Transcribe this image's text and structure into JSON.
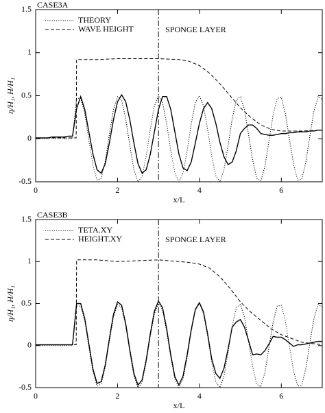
{
  "chart_data": [
    {
      "type": "line",
      "title": "CASE3A",
      "annotation": "SPONGE LAYER",
      "vline": 3,
      "xlabel": "x/L",
      "ylabel": "η/H₁, H/H₁",
      "xlim": [
        0,
        7
      ],
      "xticks": [
        0,
        2,
        4,
        6
      ],
      "ylim": [
        -0.5,
        1.5
      ],
      "yticks": [
        -0.5,
        0,
        0.5,
        1,
        1.5
      ],
      "x": [
        0,
        0.1,
        0.2,
        0.3,
        0.4,
        0.5,
        0.6,
        0.7,
        0.8,
        0.9,
        1,
        1.1,
        1.2,
        1.3,
        1.4,
        1.5,
        1.6,
        1.7,
        1.8,
        1.9,
        2,
        2.1,
        2.2,
        2.3,
        2.4,
        2.5,
        2.6,
        2.7,
        2.8,
        2.9,
        3,
        3.1,
        3.2,
        3.3,
        3.4,
        3.5,
        3.6,
        3.7,
        3.8,
        3.9,
        4,
        4.1,
        4.2,
        4.3,
        4.4,
        4.5,
        4.6,
        4.7,
        4.8,
        4.9,
        5,
        5.1,
        5.2,
        5.3,
        5.4,
        5.5,
        5.6,
        5.7,
        5.8,
        5.9,
        6,
        6.1,
        6.2,
        6.3,
        6.4,
        6.5,
        6.6,
        6.7,
        6.8,
        6.9,
        7
      ],
      "series": [
        {
          "name": "THEORY",
          "color": "#000000",
          "style": "dotted",
          "values": [
            0,
            0,
            0,
            0,
            0,
            0,
            0,
            0,
            0,
            0,
            0.47,
            0.47,
            0.29,
            -0.02,
            -0.31,
            -0.48,
            -0.46,
            -0.26,
            0.05,
            0.34,
            0.49,
            0.45,
            0.23,
            -0.08,
            -0.36,
            -0.5,
            -0.44,
            -0.2,
            0.11,
            0.38,
            0.5,
            0.42,
            0.17,
            -0.14,
            -0.4,
            -0.5,
            -0.4,
            -0.14,
            0.17,
            0.42,
            0.5,
            0.38,
            0.11,
            -0.2,
            -0.43,
            -0.5,
            -0.36,
            -0.08,
            0.23,
            0.45,
            0.49,
            0.34,
            0.05,
            -0.25,
            -0.46,
            -0.49,
            -0.32,
            -0.02,
            0.28,
            0.47,
            0.48,
            0.29,
            -0.01,
            -0.3,
            -0.48,
            -0.47,
            -0.27,
            0.04,
            0.33,
            0.49,
            0.46
          ]
        },
        {
          "name": "WAVE HEIGHT",
          "color": "#000000",
          "style": "dashed",
          "x": [
            0,
            0.99,
            1,
            1.5,
            2,
            2.5,
            3,
            3.5,
            3.75,
            4,
            4.25,
            4.5,
            4.75,
            5,
            5.25,
            5.5,
            5.75,
            6,
            6.5,
            7
          ],
          "values": [
            0.01,
            0.01,
            0.92,
            0.92,
            0.93,
            0.93,
            0.93,
            0.92,
            0.9,
            0.85,
            0.76,
            0.64,
            0.5,
            0.36,
            0.25,
            0.16,
            0.11,
            0.09,
            0.09,
            0.1
          ]
        },
        {
          "color": "#000000",
          "style": "solid",
          "values": [
            0.01,
            0.01,
            0.01,
            0.01,
            0.02,
            0.02,
            0.02,
            0.02,
            0.03,
            0.03,
            0.35,
            0.49,
            0.34,
            0.08,
            -0.18,
            -0.36,
            -0.4,
            -0.29,
            -0.05,
            0.22,
            0.43,
            0.51,
            0.43,
            0.22,
            -0.05,
            -0.29,
            -0.4,
            -0.36,
            -0.18,
            0.08,
            0.34,
            0.49,
            0.49,
            0.34,
            0.08,
            -0.18,
            -0.34,
            -0.37,
            -0.27,
            -0.05,
            0.18,
            0.35,
            0.42,
            0.35,
            0.18,
            -0.04,
            -0.21,
            -0.3,
            -0.27,
            -0.14,
            0.06,
            0.12,
            0.16,
            0.16,
            0.12,
            0.06,
            0.05,
            0.04,
            0.04,
            0.05,
            0.06,
            0.06,
            0.07,
            0.07,
            0.08,
            0.08,
            0.08,
            0.09,
            0.09,
            0.1,
            0.1
          ]
        }
      ]
    },
    {
      "type": "line",
      "title": "CASE3B",
      "annotation": "SPONGE LAYER",
      "vline": 3,
      "xlabel": "x/L",
      "ylabel": "η/H₁, H/H₁",
      "xlim": [
        0,
        7
      ],
      "xticks": [
        0,
        2,
        4,
        6
      ],
      "ylim": [
        -0.5,
        1.5
      ],
      "yticks": [
        -0.5,
        0,
        0.5,
        1,
        1.5
      ],
      "x": [
        0,
        0.1,
        0.2,
        0.3,
        0.4,
        0.5,
        0.6,
        0.7,
        0.8,
        0.9,
        1,
        1.1,
        1.2,
        1.3,
        1.4,
        1.5,
        1.6,
        1.7,
        1.8,
        1.9,
        2,
        2.1,
        2.2,
        2.3,
        2.4,
        2.5,
        2.6,
        2.7,
        2.8,
        2.9,
        3,
        3.1,
        3.2,
        3.3,
        3.4,
        3.5,
        3.6,
        3.7,
        3.8,
        3.9,
        4,
        4.1,
        4.2,
        4.3,
        4.4,
        4.5,
        4.6,
        4.7,
        4.8,
        4.9,
        5,
        5.1,
        5.2,
        5.3,
        5.4,
        5.5,
        5.6,
        5.7,
        5.8,
        5.9,
        6,
        6.1,
        6.2,
        6.3,
        6.4,
        6.5,
        6.6,
        6.7,
        6.8,
        6.9,
        7
      ],
      "series": [
        {
          "name": "TETA.XY",
          "color": "#000000",
          "style": "dotted",
          "values": [
            0,
            0,
            0,
            0,
            0,
            0,
            0,
            0,
            0,
            0,
            0.47,
            0.47,
            0.29,
            -0.02,
            -0.31,
            -0.48,
            -0.46,
            -0.26,
            0.05,
            0.34,
            0.49,
            0.45,
            0.23,
            -0.08,
            -0.36,
            -0.5,
            -0.44,
            -0.2,
            0.11,
            0.38,
            0.5,
            0.42,
            0.17,
            -0.14,
            -0.4,
            -0.5,
            -0.4,
            -0.14,
            0.17,
            0.42,
            0.5,
            0.38,
            0.11,
            -0.2,
            -0.43,
            -0.5,
            -0.36,
            -0.08,
            0.23,
            0.45,
            0.49,
            0.34,
            0.05,
            -0.25,
            -0.46,
            -0.49,
            -0.32,
            -0.02,
            0.28,
            0.47,
            0.48,
            0.29,
            -0.01,
            -0.3,
            -0.48,
            -0.47,
            -0.27,
            0.04,
            0.33,
            0.49,
            0.46
          ]
        },
        {
          "name": "HEIGHT.XY",
          "color": "#000000",
          "style": "dashed",
          "x": [
            0,
            0.99,
            1,
            1.5,
            2,
            2.5,
            3,
            3.5,
            3.75,
            4,
            4.25,
            4.5,
            4.75,
            5,
            5.25,
            5.5,
            5.75,
            6,
            6.5,
            7
          ],
          "values": [
            0.01,
            0.01,
            1.02,
            1.02,
            1.0,
            1.01,
            1.02,
            1.0,
            0.99,
            0.97,
            0.92,
            0.82,
            0.68,
            0.52,
            0.4,
            0.3,
            0.2,
            0.13,
            0.04,
            0.01
          ]
        },
        {
          "color": "#000000",
          "style": "solid",
          "values": [
            0.01,
            0.01,
            0.01,
            0.01,
            0.01,
            0.01,
            0.01,
            0.01,
            0.01,
            0.01,
            0.5,
            0.5,
            0.32,
            0.02,
            -0.28,
            -0.45,
            -0.43,
            -0.23,
            0.08,
            0.37,
            0.52,
            0.48,
            0.26,
            -0.05,
            -0.33,
            -0.47,
            -0.41,
            -0.17,
            0.14,
            0.41,
            0.53,
            0.45,
            0.2,
            -0.11,
            -0.37,
            -0.47,
            -0.36,
            -0.11,
            0.19,
            0.43,
            0.51,
            0.4,
            0.14,
            -0.16,
            -0.33,
            -0.39,
            -0.27,
            -0.04,
            0.22,
            0.28,
            0.31,
            0.22,
            0.06,
            -0.11,
            -0.1,
            -0.11,
            -0.06,
            0.02,
            0.11,
            0.1,
            0.1,
            0.07,
            0.03,
            -0.01,
            0.01,
            0.01,
            0.02,
            0.03,
            0.04,
            0.05,
            0.05
          ]
        }
      ]
    }
  ]
}
